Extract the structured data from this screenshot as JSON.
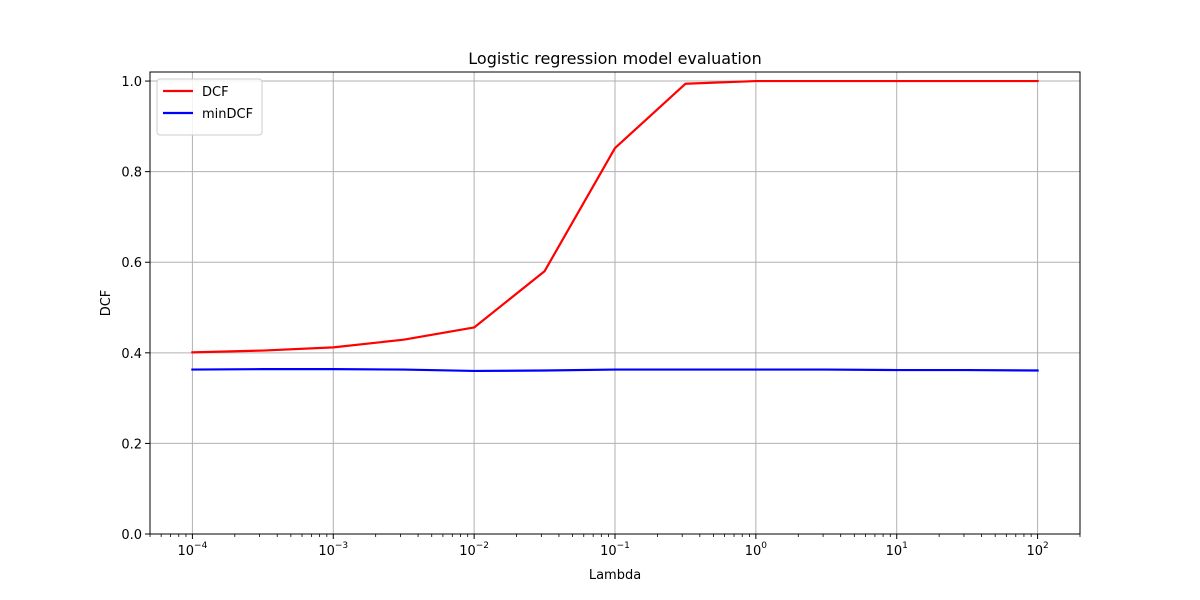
{
  "chart_data": {
    "type": "line",
    "title": "Logistic regression model evaluation",
    "xlabel": "Lambda",
    "ylabel": "DCF",
    "xscale": "log",
    "xlim": [
      5e-05,
      200
    ],
    "ylim": [
      0,
      1.02
    ],
    "grid": true,
    "legend_position": "top-left",
    "x": [
      0.0001,
      0.000316,
      0.001,
      0.00316,
      0.01,
      0.0316,
      0.1,
      0.316,
      1,
      3.16,
      10,
      31.6,
      100
    ],
    "xticks": [
      {
        "value": 0.0001,
        "base": "10",
        "exp": "−4"
      },
      {
        "value": 0.001,
        "base": "10",
        "exp": "−3"
      },
      {
        "value": 0.01,
        "base": "10",
        "exp": "−2"
      },
      {
        "value": 0.1,
        "base": "10",
        "exp": "−1"
      },
      {
        "value": 1,
        "base": "10",
        "exp": "0"
      },
      {
        "value": 10,
        "base": "10",
        "exp": "1"
      },
      {
        "value": 100,
        "base": "10",
        "exp": "2"
      }
    ],
    "yticks": [
      {
        "value": 0.0,
        "label": "0.0"
      },
      {
        "value": 0.2,
        "label": "0.2"
      },
      {
        "value": 0.4,
        "label": "0.4"
      },
      {
        "value": 0.6,
        "label": "0.6"
      },
      {
        "value": 0.8,
        "label": "0.8"
      },
      {
        "value": 1.0,
        "label": "1.0"
      }
    ],
    "series": [
      {
        "name": "DCF",
        "color": "#ff0000",
        "values": [
          0.401,
          0.405,
          0.412,
          0.429,
          0.456,
          0.58,
          0.852,
          0.994,
          1.0,
          1.0,
          1.0,
          1.0,
          1.0
        ]
      },
      {
        "name": "minDCF",
        "color": "#0000ff",
        "values": [
          0.363,
          0.364,
          0.364,
          0.363,
          0.36,
          0.361,
          0.363,
          0.363,
          0.363,
          0.363,
          0.362,
          0.362,
          0.361
        ]
      }
    ]
  }
}
